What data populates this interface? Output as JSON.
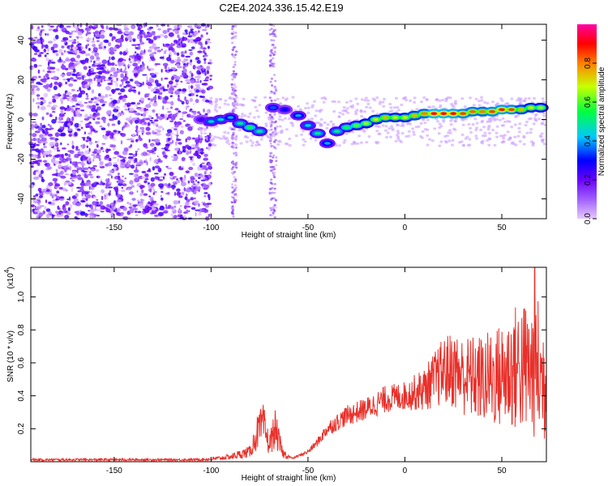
{
  "title": "C2E4.2024.336.15.42.E19",
  "chart_data": [
    {
      "type": "heatmap",
      "xlabel": "Height of straight line (km)",
      "ylabel": "Frequency (Hz)",
      "xlim": [
        -193,
        73
      ],
      "ylim": [
        -50,
        48
      ],
      "x_ticks": [
        -150,
        -100,
        -50,
        0,
        50
      ],
      "y_ticks": [
        -40,
        -20,
        0,
        20,
        40
      ],
      "colorbar": {
        "label": "Normalized spectral amplitude",
        "range": [
          0,
          1
        ],
        "ticks": [
          "0.0",
          "0.2",
          "0.4",
          "0.6",
          "0.8"
        ],
        "tick_values": [
          0.0,
          0.2,
          0.4,
          0.6,
          0.8
        ],
        "colors": [
          "#e8c8ff",
          "#6a00ff",
          "#0000ff",
          "#00e0ff",
          "#00ff40",
          "#e0ff00",
          "#ff8000",
          "#ff0000",
          "#ff00a0"
        ]
      },
      "noise_region": [
        -193,
        -100
      ],
      "ridge": [
        {
          "x": -105,
          "y": 0,
          "v": 0.25
        },
        {
          "x": -100,
          "y": -1,
          "v": 0.45
        },
        {
          "x": -95,
          "y": 0,
          "v": 0.45
        },
        {
          "x": -90,
          "y": 1,
          "v": 0.4
        },
        {
          "x": -85,
          "y": -2,
          "v": 0.5
        },
        {
          "x": -80,
          "y": -4,
          "v": 0.55
        },
        {
          "x": -75,
          "y": -6,
          "v": 0.5
        },
        {
          "x": -68,
          "y": 6,
          "v": 0.35
        },
        {
          "x": -62,
          "y": 5,
          "v": 0.3
        },
        {
          "x": -55,
          "y": 2,
          "v": 0.4
        },
        {
          "x": -50,
          "y": -3,
          "v": 0.45
        },
        {
          "x": -45,
          "y": -7,
          "v": 0.5
        },
        {
          "x": -40,
          "y": -12,
          "v": 0.4
        },
        {
          "x": -35,
          "y": -6,
          "v": 0.5
        },
        {
          "x": -30,
          "y": -4,
          "v": 0.55
        },
        {
          "x": -25,
          "y": -3,
          "v": 0.6
        },
        {
          "x": -20,
          "y": -2,
          "v": 0.65
        },
        {
          "x": -15,
          "y": 0,
          "v": 0.7
        },
        {
          "x": -10,
          "y": 1,
          "v": 0.75
        },
        {
          "x": -5,
          "y": 1,
          "v": 0.7
        },
        {
          "x": 0,
          "y": 1,
          "v": 0.7
        },
        {
          "x": 5,
          "y": 2,
          "v": 0.75
        },
        {
          "x": 10,
          "y": 3,
          "v": 0.8
        },
        {
          "x": 15,
          "y": 3,
          "v": 0.92
        },
        {
          "x": 20,
          "y": 3,
          "v": 0.92
        },
        {
          "x": 25,
          "y": 3,
          "v": 0.9
        },
        {
          "x": 30,
          "y": 3,
          "v": 0.85
        },
        {
          "x": 35,
          "y": 4,
          "v": 0.82
        },
        {
          "x": 40,
          "y": 4,
          "v": 0.8
        },
        {
          "x": 45,
          "y": 4,
          "v": 0.85
        },
        {
          "x": 50,
          "y": 5,
          "v": 0.88
        },
        {
          "x": 55,
          "y": 5,
          "v": 0.85
        },
        {
          "x": 60,
          "y": 5,
          "v": 0.75
        },
        {
          "x": 65,
          "y": 6,
          "v": 0.7
        },
        {
          "x": 70,
          "y": 6,
          "v": 0.65
        }
      ]
    },
    {
      "type": "line",
      "xlabel": "Height of straight line (km)",
      "ylabel": "SNR (10 * v/v)",
      "y_multiplier": "(x10",
      "y_multiplier_exp": "4",
      "y_multiplier_close": ")",
      "xlim": [
        -193,
        73
      ],
      "ylim": [
        0,
        1.18
      ],
      "x_ticks": [
        -150,
        -100,
        -50,
        0,
        50
      ],
      "y_ticks": [
        0.2,
        0.4,
        0.6,
        0.8,
        1.0
      ],
      "y_tick_labels": [
        "0.2",
        "0.4",
        "0.6",
        "0.8",
        "1.0"
      ],
      "color": "#e8302a",
      "envelope": [
        {
          "x": -193,
          "y": 0.012
        },
        {
          "x": -110,
          "y": 0.012
        },
        {
          "x": -100,
          "y": 0.015
        },
        {
          "x": -90,
          "y": 0.03
        },
        {
          "x": -80,
          "y": 0.06
        },
        {
          "x": -76,
          "y": 0.18
        },
        {
          "x": -73,
          "y": 0.22
        },
        {
          "x": -70,
          "y": 0.1
        },
        {
          "x": -67,
          "y": 0.2
        },
        {
          "x": -63,
          "y": 0.05
        },
        {
          "x": -58,
          "y": 0.02
        },
        {
          "x": -50,
          "y": 0.06
        },
        {
          "x": -45,
          "y": 0.12
        },
        {
          "x": -40,
          "y": 0.2
        },
        {
          "x": -30,
          "y": 0.28
        },
        {
          "x": -20,
          "y": 0.32
        },
        {
          "x": -10,
          "y": 0.38
        },
        {
          "x": 0,
          "y": 0.4
        },
        {
          "x": 10,
          "y": 0.44
        },
        {
          "x": 20,
          "y": 0.55
        },
        {
          "x": 25,
          "y": 0.56
        },
        {
          "x": 30,
          "y": 0.52
        },
        {
          "x": 40,
          "y": 0.5
        },
        {
          "x": 50,
          "y": 0.52
        },
        {
          "x": 55,
          "y": 0.56
        },
        {
          "x": 60,
          "y": 0.58
        },
        {
          "x": 65,
          "y": 0.55
        },
        {
          "x": 68,
          "y": 0.6
        },
        {
          "x": 70,
          "y": 0.5
        },
        {
          "x": 73,
          "y": 0.5
        }
      ],
      "peak": {
        "x": 67,
        "y": 1.18
      }
    }
  ]
}
